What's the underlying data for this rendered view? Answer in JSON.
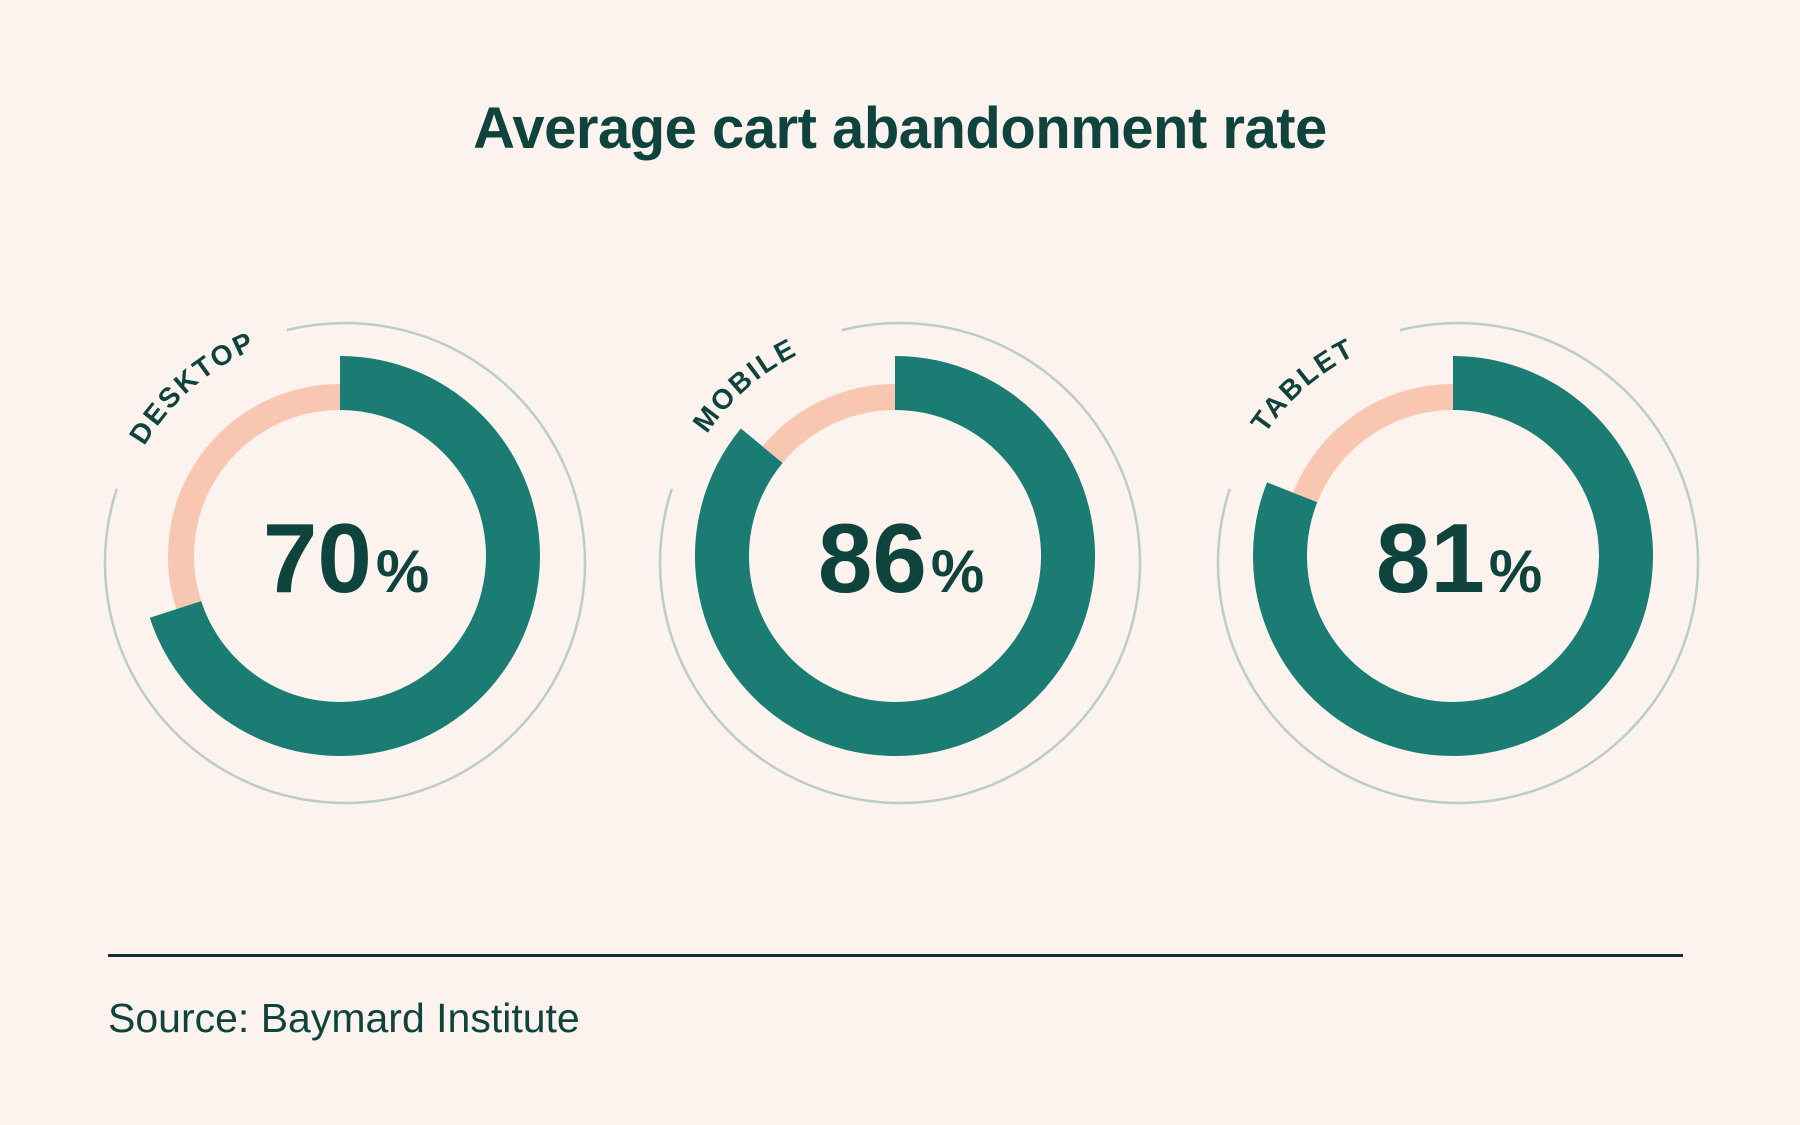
{
  "page": {
    "title": "Average cart abandonment rate",
    "source_note": "Source: Baymard Institute"
  },
  "chart_data": {
    "type": "pie",
    "subtype": "donut-progress",
    "title": "Average cart abandonment rate",
    "unit": "%",
    "categories": [
      "DESKTOP",
      "MOBILE",
      "TABLET"
    ],
    "values": [
      70,
      86,
      81
    ],
    "series": [
      {
        "label": "DESKTOP",
        "value": 70
      },
      {
        "label": "MOBILE",
        "value": 86
      },
      {
        "label": "TABLET",
        "value": 81
      }
    ],
    "source": "Source: Baymard Institute",
    "layout": {
      "start_angle_deg": 0,
      "direction": "clockwise",
      "legend": "curved-label-top-left-of-each-donut",
      "grid": false
    },
    "colors": {
      "filled_arc": "#1a7c72",
      "remainder_arc": "#f9c6b1",
      "ink": "#0f443e",
      "background": "#fcf2ee",
      "outline_ring": "#bacdc9",
      "divider": "#163239"
    }
  }
}
